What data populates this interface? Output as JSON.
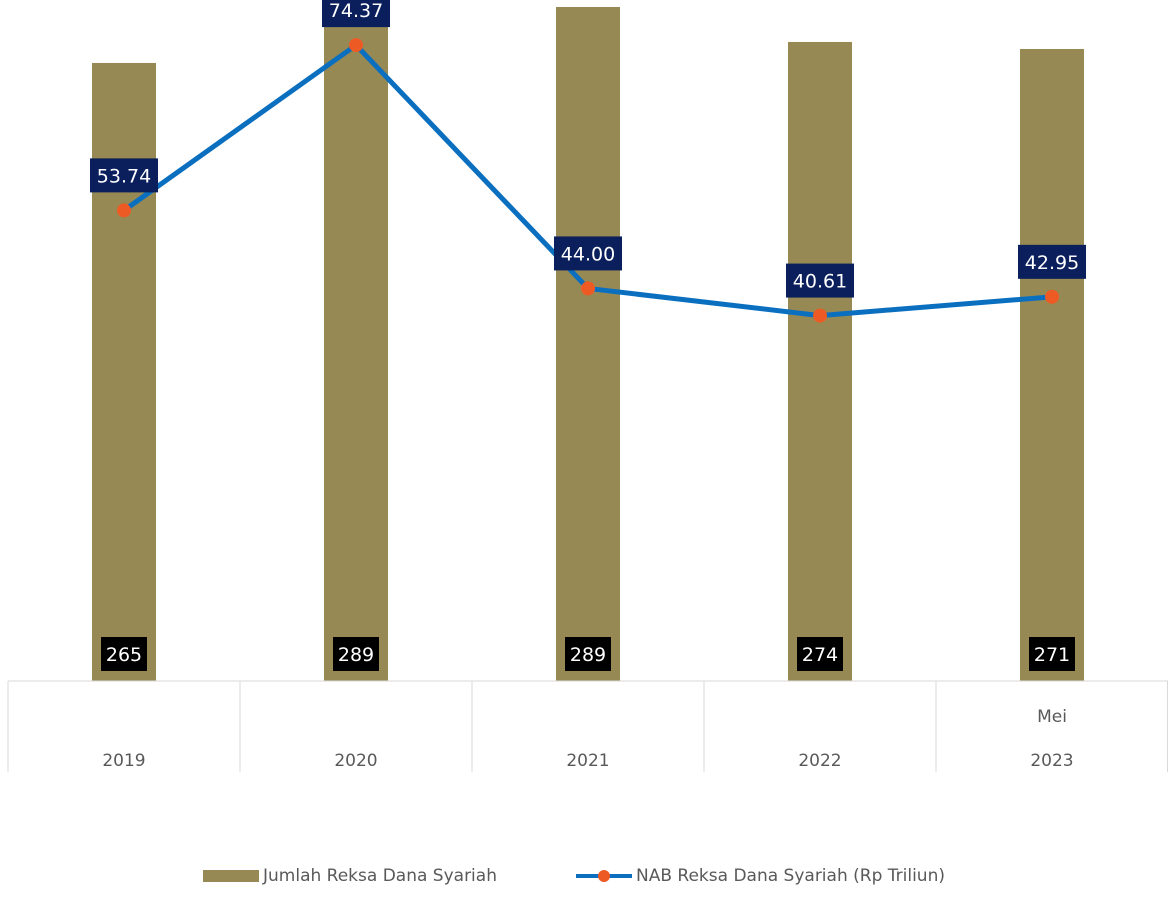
{
  "colors": {
    "bar": "#978953",
    "line": "#0b6fc0",
    "marker": "#ee5a24",
    "bar_label_bg": "#000000",
    "line_label_bg": "#0a1f5c",
    "grid": "#d9d9d9"
  },
  "chart_data": {
    "type": "bar",
    "categories": [
      "2019",
      "2020",
      "2021",
      "2022",
      "2023"
    ],
    "category_top_labels": [
      "",
      "",
      "",
      "",
      "Mei"
    ],
    "series": [
      {
        "name": "Jumlah Reksa Dana Syariah",
        "type": "bar",
        "axis": "left",
        "values": [
          265,
          289,
          289,
          274,
          271
        ],
        "value_labels": [
          "265",
          "289",
          "289",
          "274",
          "271"
        ]
      },
      {
        "name": "NAB Reksa Dana Syariah (Rp Triliun)",
        "type": "line",
        "axis": "right",
        "values": [
          53.74,
          74.37,
          44.0,
          40.61,
          42.95
        ],
        "value_labels": [
          "53.74",
          "74.37",
          "44.00",
          "40.61",
          "42.95"
        ]
      }
    ],
    "left_axis_range": [
      0,
      292
    ],
    "right_axis_range": [
      -5,
      80
    ],
    "grid": false,
    "legend_position": "bottom"
  }
}
